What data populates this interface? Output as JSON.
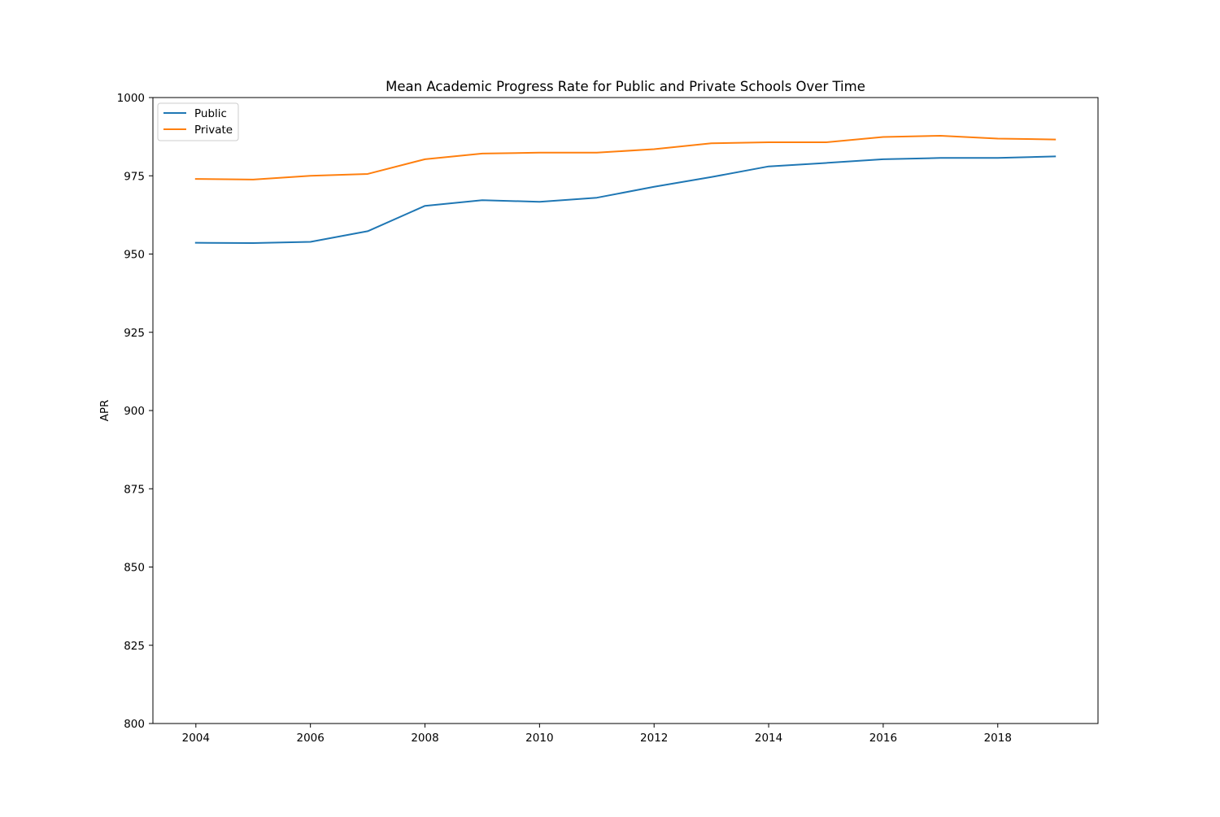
{
  "chart_data": {
    "type": "line",
    "title": "Mean Academic Progress Rate for Public and Private Schools Over Time",
    "xlabel": "",
    "ylabel": "APR",
    "x": [
      2004,
      2005,
      2006,
      2007,
      2008,
      2009,
      2010,
      2011,
      2012,
      2013,
      2014,
      2015,
      2016,
      2017,
      2018,
      2019
    ],
    "series": [
      {
        "name": "Public",
        "color": "#1f77b4",
        "values": [
          953.6,
          953.5,
          953.9,
          957.3,
          965.4,
          967.2,
          966.7,
          968.0,
          971.5,
          974.6,
          978.0,
          979.1,
          980.3,
          980.7,
          980.7,
          981.2
        ]
      },
      {
        "name": "Private",
        "color": "#ff7f0e",
        "values": [
          974.0,
          973.8,
          975.0,
          975.6,
          980.3,
          982.1,
          982.4,
          982.4,
          983.5,
          985.4,
          985.7,
          985.7,
          987.4,
          987.8,
          986.9,
          986.6
        ]
      }
    ],
    "xlim": [
      2003.25,
      2019.75
    ],
    "ylim": [
      800,
      1000
    ],
    "xticks": [
      2004,
      2006,
      2008,
      2010,
      2012,
      2014,
      2016,
      2018
    ],
    "xtick_labels": [
      "2004",
      "2006",
      "2008",
      "2010",
      "2012",
      "2014",
      "2016",
      "2018"
    ],
    "yticks": [
      800,
      825,
      850,
      875,
      900,
      925,
      950,
      975,
      1000
    ],
    "ytick_labels": [
      "800",
      "825",
      "850",
      "875",
      "900",
      "925",
      "950",
      "975",
      "1000"
    ],
    "grid": false,
    "legend_position": "top-left"
  }
}
